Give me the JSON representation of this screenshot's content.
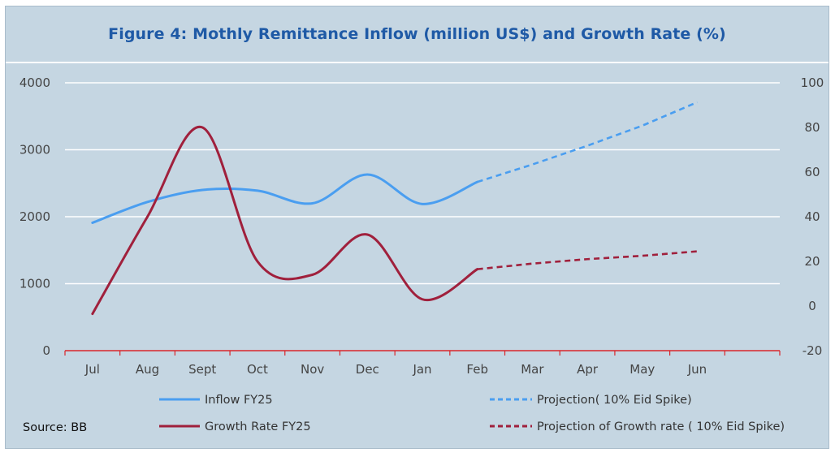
{
  "chart_data": {
    "type": "line",
    "title": "Figure 4: Mothly Remittance Inflow (million US$) and Growth Rate (%)",
    "categories": [
      "Jul",
      "Aug",
      "Sept",
      "Oct",
      "Nov",
      "Dec",
      "Jan",
      "Feb",
      "Mar",
      "Apr",
      "May",
      "Jun"
    ],
    "y_left": {
      "ticks": [
        "0",
        "1000",
        "2000",
        "3000",
        "4000"
      ],
      "ylim": [
        0,
        4000
      ]
    },
    "y_right": {
      "ticks": [
        "-20",
        "0",
        "20",
        "40",
        "60",
        "80",
        "100"
      ],
      "ylim": [
        -20,
        100
      ]
    },
    "series": [
      {
        "name": "Inflow FY25",
        "axis": "left",
        "style": "solid",
        "color": "#4a9ef0",
        "values": [
          1910,
          2220,
          2400,
          2390,
          2200,
          2630,
          2190,
          2520,
          null,
          null,
          null,
          null
        ]
      },
      {
        "name": "Projection( 10% Eid Spike)",
        "axis": "left",
        "style": "dashed",
        "color": "#4a9ef0",
        "values": [
          null,
          null,
          null,
          null,
          null,
          null,
          null,
          2520,
          2780,
          3060,
          3360,
          3710
        ]
      },
      {
        "name": "Growth Rate FY25",
        "axis": "right",
        "style": "solid",
        "color": "#a0203c",
        "values": [
          -3.5,
          40,
          80,
          20,
          14,
          32,
          3,
          16.5,
          null,
          null,
          null,
          null
        ]
      },
      {
        "name": "Projection of Growth rate ( 10% Eid Spike)",
        "axis": "right",
        "style": "dashed",
        "color": "#a0203c",
        "values": [
          null,
          null,
          null,
          null,
          null,
          null,
          null,
          16.5,
          19,
          21,
          22.5,
          24.5
        ]
      }
    ],
    "source": "Source: BB"
  }
}
